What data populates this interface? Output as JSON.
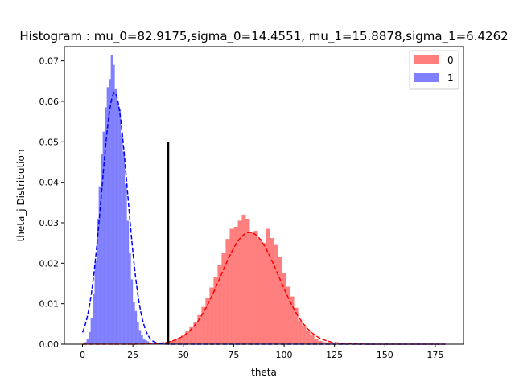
{
  "chart_data": {
    "type": "bar",
    "title": "Histogram : mu_0=82.9175,sigma_0=14.4551, mu_1=15.8878,sigma_1=6.4262",
    "xlabel": "theta",
    "ylabel": "theta_j Distribution",
    "xlim": [
      -9,
      189
    ],
    "ylim": [
      0,
      0.0735
    ],
    "xticks": [
      0,
      25,
      50,
      75,
      100,
      125,
      150,
      175
    ],
    "yticks": [
      0.0,
      0.01,
      0.02,
      0.03,
      0.04,
      0.05,
      0.06,
      0.07
    ],
    "xtick_labels": [
      "0",
      "25",
      "50",
      "75",
      "100",
      "125",
      "150",
      "175"
    ],
    "ytick_labels": [
      "0.00",
      "0.01",
      "0.02",
      "0.03",
      "0.04",
      "0.05",
      "0.06",
      "0.07"
    ],
    "legend_position": "top-right",
    "grid": false,
    "series": [
      {
        "name": "0",
        "color": "#ff0000",
        "alpha": 0.5,
        "mu": 82.9175,
        "sigma": 14.4551,
        "bin_edges": [
          37,
          39,
          41,
          43,
          45,
          47,
          49,
          51,
          53,
          55,
          57,
          59,
          61,
          63,
          65,
          67,
          69,
          71,
          73,
          75,
          77,
          79,
          81,
          83,
          85,
          87,
          89,
          91,
          93,
          95,
          97,
          99,
          101,
          103,
          105,
          107,
          109,
          111,
          113,
          115,
          117,
          119,
          121,
          123,
          125,
          127
        ],
        "values": [
          0.0002,
          0.0003,
          0.0006,
          0.0008,
          0.0011,
          0.0016,
          0.0022,
          0.0032,
          0.0042,
          0.0055,
          0.0072,
          0.0092,
          0.0115,
          0.014,
          0.0165,
          0.0195,
          0.0225,
          0.026,
          0.0285,
          0.029,
          0.0305,
          0.032,
          0.031,
          0.0278,
          0.028,
          0.026,
          0.025,
          0.0285,
          0.0262,
          0.0245,
          0.0215,
          0.0175,
          0.0142,
          0.0118,
          0.009,
          0.0058,
          0.0044,
          0.0034,
          0.0022,
          0.0012,
          0.0008,
          0.0005,
          0.0003,
          0.0002,
          0.0001
        ]
      },
      {
        "name": "1",
        "color": "#0000ff",
        "alpha": 0.5,
        "mu": 15.8878,
        "sigma": 6.4262,
        "bin_edges": [
          1,
          2,
          3,
          4,
          5,
          6,
          7,
          8,
          9,
          10,
          11,
          12,
          13,
          14,
          15,
          16,
          17,
          18,
          19,
          20,
          21,
          22,
          23,
          24,
          25,
          26,
          27,
          28,
          29,
          30,
          31,
          32,
          33,
          34,
          35,
          36,
          37,
          38,
          39,
          40,
          41,
          42,
          43
        ],
        "values": [
          0.0005,
          0.0012,
          0.003,
          0.0065,
          0.0125,
          0.0205,
          0.031,
          0.039,
          0.047,
          0.0525,
          0.0585,
          0.0635,
          0.0655,
          0.0715,
          0.069,
          0.063,
          0.0595,
          0.058,
          0.052,
          0.0475,
          0.0395,
          0.0305,
          0.0225,
          0.016,
          0.0105,
          0.0082,
          0.0055,
          0.0035,
          0.0022,
          0.0014,
          0.001,
          0.0007,
          0.0004,
          0.0003,
          0.0002,
          0.0002,
          0.0001,
          0.0001,
          0.0001,
          0.0001,
          0.0001,
          0.0001
        ]
      }
    ],
    "fit_curves": [
      {
        "series": "0",
        "style": "dashed",
        "color": "#ff0000",
        "mu": 82.9175,
        "sigma": 14.4551,
        "x_range": [
          0,
          180
        ]
      },
      {
        "series": "1",
        "style": "dashed",
        "color": "#0000ff",
        "mu": 15.8878,
        "sigma": 6.4262,
        "x_range": [
          0,
          180
        ]
      }
    ],
    "threshold_line": {
      "x": 42.5,
      "y_range": [
        0,
        0.05
      ],
      "color": "#000000"
    }
  }
}
